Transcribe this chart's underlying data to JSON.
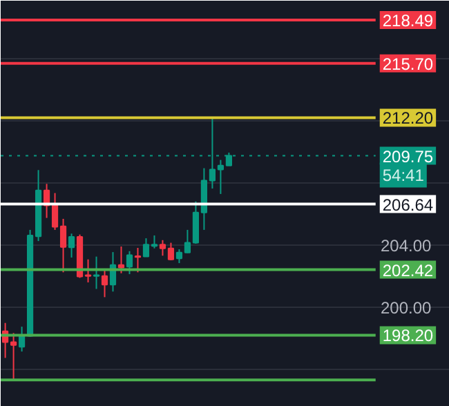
{
  "chart_data": {
    "type": "candlestick",
    "categories": [
      null,
      null,
      null,
      null,
      null,
      null,
      null,
      null,
      null,
      null,
      null,
      null,
      null,
      null,
      null,
      null,
      null,
      null,
      null,
      null,
      null,
      null,
      null,
      null,
      null,
      null,
      null,
      null,
      null,
      null,
      null,
      null,
      null,
      null,
      null,
      null,
      null,
      null,
      null,
      null,
      null,
      null,
      null,
      null,
      null,
      null,
      null,
      null,
      null,
      null,
      null,
      null,
      null,
      null
    ],
    "ohlc": [
      [
        198.46,
        198.99,
        196.74,
        197.75
      ],
      [
        197.75,
        198.34,
        195.32,
        197.57
      ],
      [
        197.45,
        198.75,
        197.15,
        198.16
      ],
      [
        198.16,
        204.98,
        198.1,
        204.62
      ],
      [
        204.56,
        208.83,
        204.26,
        207.52
      ],
      [
        207.52,
        207.94,
        205.75,
        206.55
      ],
      [
        206.55,
        207.35,
        204.98,
        205.18
      ],
      [
        205.21,
        205.69,
        202.25,
        203.88
      ],
      [
        203.85,
        204.74,
        203.2,
        204.53
      ],
      [
        204.53,
        204.68,
        201.89,
        201.98
      ],
      [
        202.07,
        203.08,
        201.6,
        202.01
      ],
      [
        202.01,
        203.26,
        201.18,
        202.07
      ],
      [
        202.01,
        202.49,
        200.65,
        201.45
      ],
      [
        201.45,
        203.55,
        201.01,
        202.72
      ],
      [
        202.72,
        203.91,
        202.19,
        202.55
      ],
      [
        202.61,
        203.61,
        202.13,
        203.35
      ],
      [
        203.29,
        203.82,
        202.25,
        203.23
      ],
      [
        203.26,
        204.44,
        203.26,
        204.03
      ],
      [
        203.94,
        204.62,
        203.79,
        204.03
      ],
      [
        204.03,
        204.32,
        203.32,
        203.79
      ],
      [
        203.79,
        204.15,
        203.02,
        203.08
      ],
      [
        203.14,
        203.73,
        202.84,
        203.52
      ],
      [
        203.52,
        204.98,
        203.49,
        204.15
      ],
      [
        204.15,
        206.81,
        204.09,
        206.1
      ],
      [
        206.1,
        208.95,
        204.98,
        208.15
      ],
      [
        208.15,
        212.18,
        207.64,
        208.86
      ],
      [
        208.86,
        209.48,
        207.29,
        209.12
      ],
      [
        209.12,
        209.95,
        209.12,
        209.75
      ],
      null,
      null,
      null,
      null,
      null,
      null,
      null,
      null,
      null,
      null,
      null,
      null,
      null,
      null,
      null,
      null,
      null,
      null,
      null,
      null,
      null,
      null,
      null,
      null,
      null,
      null
    ],
    "colors": [
      "#f23645",
      "#f23645",
      "#089981",
      "#089981",
      "#089981",
      "#f23645",
      "#f23645",
      "#f23645",
      "#089981",
      "#f23645",
      "#f23645",
      "#089981",
      "#f23645",
      "#089981",
      "#f23645",
      "#089981",
      "#f23645",
      "#089981",
      "#089981",
      "#f23645",
      "#f23645",
      "#089981",
      "#089981",
      "#089981",
      "#089981",
      "#089981",
      "#089981",
      "#089981",
      null,
      null,
      null,
      null,
      null,
      null,
      null,
      null,
      null,
      null,
      null,
      null,
      null,
      null,
      null,
      null,
      null,
      null,
      null,
      null,
      null,
      null,
      null,
      null,
      null,
      null
    ],
    "ylim": [
      193.6,
      219.73
    ],
    "yticks": [
      {
        "value": 196,
        "label": null
      },
      {
        "value": 200,
        "label": "200.00"
      },
      {
        "value": 204,
        "label": "204.00"
      },
      {
        "value": 208,
        "label": null
      },
      {
        "value": 212,
        "label": null
      },
      {
        "value": 216,
        "label": null
      }
    ],
    "tick_labels": "y",
    "grid": "y",
    "ref_lines": [
      {
        "axis": "y",
        "value": 218.49,
        "label": "218.49",
        "color": "#f23645"
      },
      {
        "axis": "y",
        "value": 215.7,
        "label": "215.70",
        "color": "#f23645"
      },
      {
        "axis": "y",
        "value": 212.2,
        "label": "212.20",
        "color": "#d9c934"
      },
      {
        "axis": "y",
        "value": 209.75,
        "label": "209.75",
        "color": "#089981",
        "line_style": "dotted"
      },
      {
        "axis": "y",
        "value": 206.64,
        "label": "206.64",
        "color": "#ffffff"
      },
      {
        "axis": "y",
        "value": 202.42,
        "label": "202.42",
        "color": "#4caf50"
      },
      {
        "axis": "y",
        "value": 198.2,
        "label": "198.20",
        "color": "#4caf50"
      },
      {
        "axis": "y",
        "value": 195.32,
        "label": null,
        "color": "#4caf50"
      }
    ],
    "annotations": [
      "54:41"
    ]
  }
}
